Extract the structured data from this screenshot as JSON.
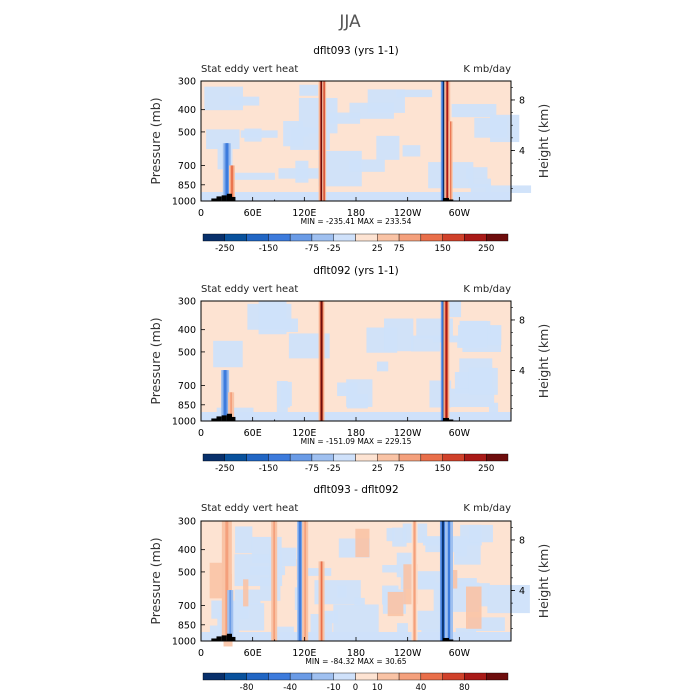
{
  "page": {
    "title": "JJA"
  },
  "colors": {
    "levels": [
      "#08306b",
      "#08519c",
      "#2166c4",
      "#3d7bdc",
      "#6a9be6",
      "#9fc0f0",
      "#cfe1fa",
      "#fde3d2",
      "#f9c3a5",
      "#f4a07c",
      "#e96f4a",
      "#d0412a",
      "#a91a17",
      "#6e0d0d"
    ],
    "zero_band": "#fde3d2",
    "topography": "#000000"
  },
  "panels": [
    {
      "title": "dflt093 (yrs 1-1)",
      "left_label": "Stat eddy vert heat",
      "right_label": "K mb/day",
      "min_max": "MIN = -235.41   MAX = 233.54",
      "colorbar_labels": [
        "-250",
        "-150",
        "-75",
        "-25",
        "25",
        "75",
        "150",
        "250"
      ]
    },
    {
      "title": "dflt092 (yrs 1-1)",
      "left_label": "Stat eddy vert heat",
      "right_label": "K mb/day",
      "min_max": "MIN = -151.09   MAX = 229.15",
      "colorbar_labels": [
        "-250",
        "-150",
        "-75",
        "-25",
        "25",
        "75",
        "150",
        "250"
      ]
    },
    {
      "title": "dflt093 - dflt092",
      "left_label": "Stat eddy vert heat",
      "right_label": "K mb/day",
      "min_max": "MIN = -84.32   MAX = 30.65",
      "colorbar_labels": [
        "-80",
        "-40",
        "-10",
        "0",
        "10",
        "40",
        "80"
      ]
    }
  ],
  "chart_data": [
    {
      "type": "heatmap",
      "title": "dflt093 (yrs 1-1)",
      "variable": "Stat eddy vert heat",
      "units": "K mb/day",
      "xlabel": "",
      "ylabel": "Pressure (mb)",
      "y2label": "Height (km)",
      "x_ticks": [
        "0",
        "60E",
        "120E",
        "180",
        "120W",
        "60W"
      ],
      "x_tick_values": [
        0,
        60,
        120,
        180,
        240,
        300
      ],
      "xlim": [
        0,
        360
      ],
      "y_ticks": [
        "300",
        "400",
        "500",
        "700",
        "850",
        "1000"
      ],
      "y_tick_values": [
        300,
        400,
        500,
        700,
        850,
        1000
      ],
      "ylim": [
        1000,
        300
      ],
      "y2_ticks": [
        "8",
        "4"
      ],
      "y2_tick_values": [
        8,
        4
      ],
      "min": -235.41,
      "max": 233.54,
      "contour_levels": [
        -250,
        -200,
        -150,
        -100,
        -75,
        -50,
        -25,
        0,
        25,
        50,
        75,
        100,
        150,
        200,
        250
      ]
    },
    {
      "type": "heatmap",
      "title": "dflt092 (yrs 1-1)",
      "variable": "Stat eddy vert heat",
      "units": "K mb/day",
      "xlabel": "",
      "ylabel": "Pressure (mb)",
      "y2label": "Height (km)",
      "x_ticks": [
        "0",
        "60E",
        "120E",
        "180",
        "120W",
        "60W"
      ],
      "x_tick_values": [
        0,
        60,
        120,
        180,
        240,
        300
      ],
      "xlim": [
        0,
        360
      ],
      "y_ticks": [
        "300",
        "400",
        "500",
        "700",
        "850",
        "1000"
      ],
      "y_tick_values": [
        300,
        400,
        500,
        700,
        850,
        1000
      ],
      "ylim": [
        1000,
        300
      ],
      "y2_ticks": [
        "8",
        "4"
      ],
      "y2_tick_values": [
        8,
        4
      ],
      "min": -151.09,
      "max": 229.15,
      "contour_levels": [
        -250,
        -200,
        -150,
        -100,
        -75,
        -50,
        -25,
        0,
        25,
        50,
        75,
        100,
        150,
        200,
        250
      ]
    },
    {
      "type": "heatmap",
      "title": "dflt093 - dflt092",
      "variable": "Stat eddy vert heat",
      "units": "K mb/day",
      "xlabel": "",
      "ylabel": "Pressure (mb)",
      "y2label": "Height (km)",
      "x_ticks": [
        "0",
        "60E",
        "120E",
        "180",
        "120W",
        "60W"
      ],
      "x_tick_values": [
        0,
        60,
        120,
        180,
        240,
        300
      ],
      "xlim": [
        0,
        360
      ],
      "y_ticks": [
        "300",
        "400",
        "500",
        "700",
        "850",
        "1000"
      ],
      "y_tick_values": [
        300,
        400,
        500,
        700,
        850,
        1000
      ],
      "ylim": [
        1000,
        300
      ],
      "y2_ticks": [
        "8",
        "4"
      ],
      "y2_tick_values": [
        8,
        4
      ],
      "min": -84.32,
      "max": 30.65,
      "contour_levels": [
        -100,
        -80,
        -60,
        -40,
        -20,
        -10,
        -5,
        0,
        5,
        10,
        20,
        40,
        60,
        80,
        100
      ]
    }
  ]
}
